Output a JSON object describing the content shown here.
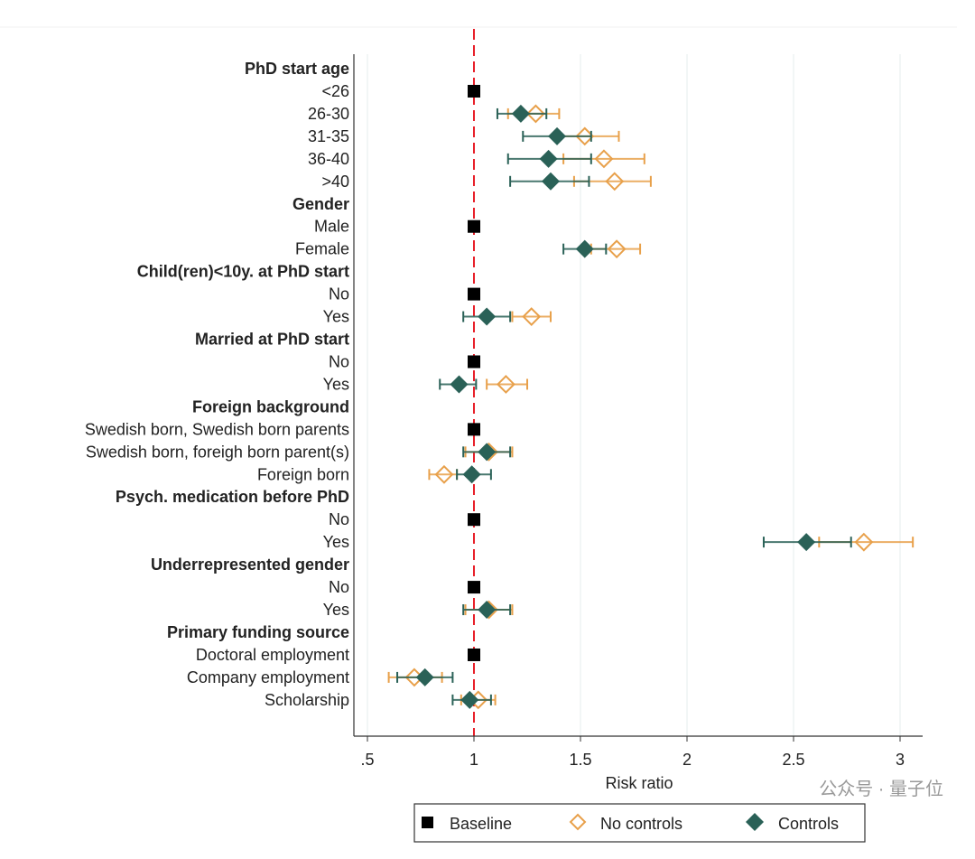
{
  "chart_data": {
    "type": "scatter",
    "subtype": "forest-plot",
    "xlabel": "Risk ratio",
    "xlim": [
      0.45,
      3.12
    ],
    "xticks": [
      0.5,
      1,
      1.5,
      2,
      2.5,
      3
    ],
    "xtick_labels": [
      ".5",
      "1",
      "1.5",
      "2",
      "2.5",
      "3"
    ],
    "reference_line": 1,
    "grid": "vertical",
    "legend": {
      "placement": "bottom",
      "entries": [
        "Baseline",
        "No controls",
        "Controls"
      ]
    },
    "colors": {
      "baseline": "#000000",
      "no_controls": "#e8a04a",
      "controls": "#2a6157",
      "reference": "#e8202a"
    },
    "rows": [
      {
        "label": "PhD start age",
        "header": true
      },
      {
        "label": "<26",
        "baseline": 1
      },
      {
        "label": "26-30",
        "controls": [
          1.22,
          1.11,
          1.34
        ],
        "no_controls": [
          1.29,
          1.16,
          1.4
        ]
      },
      {
        "label": "31-35",
        "controls": [
          1.39,
          1.23,
          1.55
        ],
        "no_controls": [
          1.52,
          1.38,
          1.68
        ]
      },
      {
        "label": "36-40",
        "controls": [
          1.35,
          1.16,
          1.55
        ],
        "no_controls": [
          1.61,
          1.42,
          1.8
        ]
      },
      {
        "label": ">40",
        "controls": [
          1.36,
          1.17,
          1.54
        ],
        "no_controls": [
          1.66,
          1.47,
          1.83
        ]
      },
      {
        "label": "Gender",
        "header": true
      },
      {
        "label": "Male",
        "baseline": 1
      },
      {
        "label": "Female",
        "controls": [
          1.52,
          1.42,
          1.62
        ],
        "no_controls": [
          1.67,
          1.55,
          1.78
        ]
      },
      {
        "label": "Child(ren)<10y. at PhD start",
        "header": true
      },
      {
        "label": "No",
        "baseline": 1
      },
      {
        "label": "Yes",
        "controls": [
          1.06,
          0.95,
          1.17
        ],
        "no_controls": [
          1.27,
          1.18,
          1.36
        ]
      },
      {
        "label": "Married at PhD start",
        "header": true
      },
      {
        "label": "No",
        "baseline": 1
      },
      {
        "label": "Yes",
        "controls": [
          0.93,
          0.84,
          1.01
        ],
        "no_controls": [
          1.15,
          1.06,
          1.25
        ]
      },
      {
        "label": "Foreign background",
        "header": true
      },
      {
        "label": "Swedish born, Swedish born parents",
        "baseline": 1
      },
      {
        "label": "Swedish born, foreigh born parent(s)",
        "controls": [
          1.06,
          0.95,
          1.17
        ],
        "no_controls": [
          1.07,
          0.96,
          1.18
        ]
      },
      {
        "label": "Foreign born",
        "controls": [
          0.99,
          0.92,
          1.08
        ],
        "no_controls": [
          0.86,
          0.79,
          0.92
        ]
      },
      {
        "label": "Psych. medication before PhD",
        "header": true
      },
      {
        "label": "No",
        "baseline": 1
      },
      {
        "label": "Yes",
        "controls": [
          2.56,
          2.36,
          2.77
        ],
        "no_controls": [
          2.83,
          2.62,
          3.06
        ]
      },
      {
        "label": "Underrepresented gender",
        "header": true
      },
      {
        "label": "No",
        "baseline": 1
      },
      {
        "label": "Yes",
        "controls": [
          1.06,
          0.95,
          1.17
        ],
        "no_controls": [
          1.07,
          0.96,
          1.18
        ]
      },
      {
        "label": "Primary funding source",
        "header": true
      },
      {
        "label": "Doctoral employment",
        "baseline": 1
      },
      {
        "label": "Company employment",
        "controls": [
          0.77,
          0.64,
          0.9
        ],
        "no_controls": [
          0.72,
          0.6,
          0.85
        ]
      },
      {
        "label": "Scholarship",
        "controls": [
          0.98,
          0.9,
          1.08
        ],
        "no_controls": [
          1.02,
          0.94,
          1.1
        ]
      }
    ]
  },
  "watermark": "公众号 · 量子位"
}
